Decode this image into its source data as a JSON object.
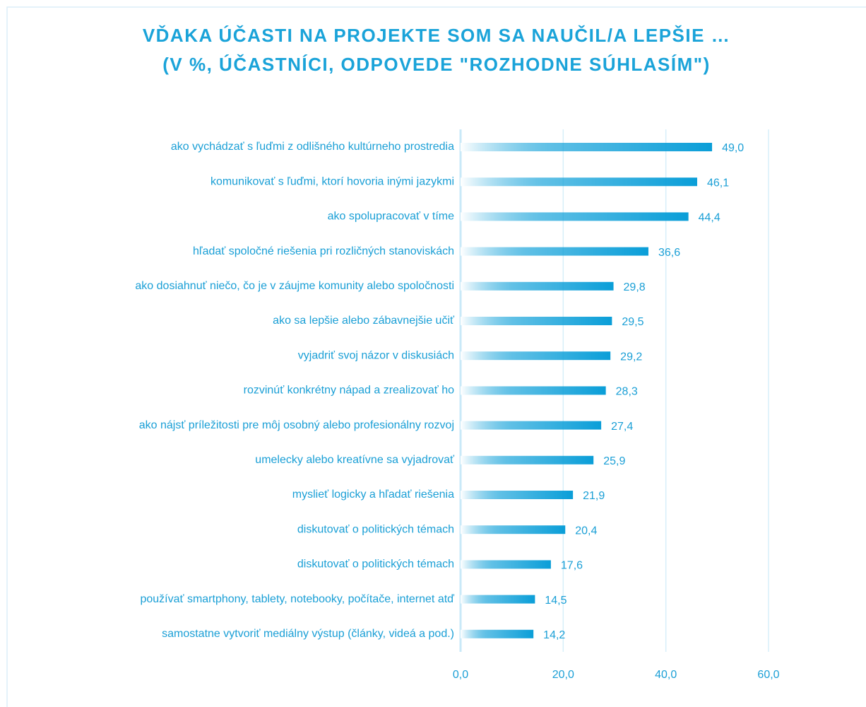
{
  "chart_data": {
    "type": "barh",
    "title": "VĎAKA ÚČASTI NA PROJEKTE SOM SA NAUČIL/A LEPŠIE …",
    "subtitle": "(V %, ÚČASTNÍCI, ODPOVEDE \"ROZHODNE SÚHLASÍM\")",
    "categories": [
      "ako vychádzať s ľuďmi z odlišného kultúrneho prostredia",
      "komunikovať s ľuďmi, ktorí hovoria inými jazykmi",
      "ako spolupracovať v tíme",
      "hľadať spoločné riešenia pri rozličných stanoviskách",
      "ako dosiahnuť niečo, čo je v záujme komunity alebo spoločnosti",
      "ako sa lepšie alebo zábavnejšie učiť",
      "vyjadriť svoj názor v diskusiách",
      "rozvinúť konkrétny nápad a zrealizovať ho",
      "ako nájsť príležitosti pre môj osobný alebo profesionálny rozvoj",
      "umelecky alebo kreatívne sa vyjadrovať",
      "myslieť logicky a hľadať riešenia",
      "diskutovať o politických témach",
      "diskutovať o politických témach",
      "používať smartphony, tablety, notebooky, počítače, internet atď",
      "samostatne vytvoriť mediálny výstup (články, videá a pod.)"
    ],
    "values": [
      49.0,
      46.1,
      44.4,
      36.6,
      29.8,
      29.5,
      29.2,
      28.3,
      27.4,
      25.9,
      21.9,
      20.4,
      17.6,
      14.5,
      14.2
    ],
    "value_labels": [
      "49,0",
      "46,1",
      "44,4",
      "36,6",
      "29,8",
      "29,5",
      "29,2",
      "28,3",
      "27,4",
      "25,9",
      "21,9",
      "20,4",
      "17,6",
      "14,5",
      "14,2"
    ],
    "color": "#0a9ed8",
    "xlim": [
      0,
      60
    ],
    "xticks": [
      {
        "value": 0,
        "label": "0,0"
      },
      {
        "value": 20,
        "label": "20,0"
      },
      {
        "value": 40,
        "label": "40,0"
      },
      {
        "value": 60,
        "label": "60,0"
      }
    ],
    "grid": true
  }
}
